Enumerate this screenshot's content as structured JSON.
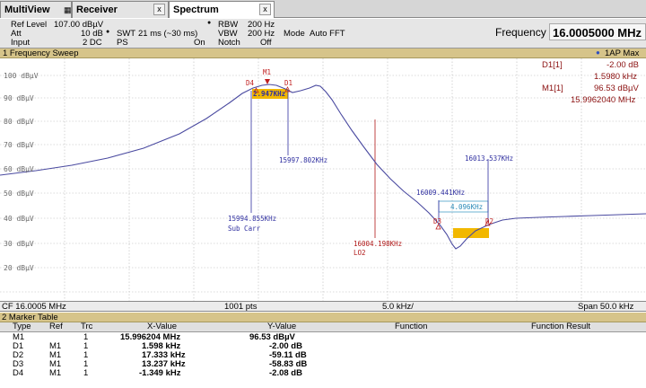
{
  "tabs": {
    "multiview": "MultiView",
    "receiver": "Receiver",
    "spectrum": "Spectrum",
    "close_glyph": "x",
    "grid_icon": "grid-icon"
  },
  "settings": {
    "ref_level_label": "Ref Level",
    "ref_level_value": "107.00 dBµV",
    "att_label": "Att",
    "att_value": "10 dB",
    "input_label": "Input",
    "input_value": "2 DC",
    "swt_label": "SWT",
    "swt_value": "21 ms (~30 ms)",
    "ps_label": "PS",
    "ps_value": "On",
    "rbw_label": "RBW",
    "rbw_value": "200 Hz",
    "vbw_label": "VBW",
    "vbw_value": "200 Hz",
    "notch_label": "Notch",
    "notch_value": "Off",
    "mode_label": "Mode",
    "mode_value": "Auto FFT",
    "frequency_label": "Frequency",
    "frequency_value": "16.0005000 MHz"
  },
  "sweep": {
    "title": "1 Frequency Sweep",
    "trace_label": "1AP Max"
  },
  "marker_info": {
    "d1_label": "D1[1]",
    "d1_level": "-2.00 dB",
    "d1_freq": "1.5980 kHz",
    "m1_label": "M1[1]",
    "m1_level": "96.53 dBµV",
    "m1_freq": "15.9962040 MHz"
  },
  "y_ticks": [
    "100 dBµV",
    "90 dBµV",
    "80 dBµV",
    "70 dBµV",
    "60 dBµV",
    "50 dBµV",
    "40 dBµV",
    "30 dBµV",
    "20 dBµV"
  ],
  "annotations": {
    "m1": "M1",
    "d1": "D1",
    "d2": "D2",
    "d3": "D3",
    "d4": "D4",
    "bw1": "2.947KHz",
    "bw2": "4.096KHz",
    "f1": "15997.802KHz",
    "f2": "15994.855KHz",
    "sub_carr": "Sub Carr",
    "f3": "16004.198KHz",
    "lo2": "LO2",
    "f4": "16009.441KHz",
    "f5": "16013.537KHz"
  },
  "footer": {
    "cf": "CF 16.0005 MHz",
    "pts": "1001 pts",
    "div": "5.0 kHz/",
    "span": "Span 50.0 kHz"
  },
  "marker_table": {
    "title": "2 Marker Table",
    "headers": {
      "type": "Type",
      "ref": "Ref",
      "trc": "Trc",
      "x": "X-Value",
      "y": "Y-Value",
      "function": "Function",
      "result": "Function Result"
    },
    "rows": [
      {
        "type": "M1",
        "ref": "",
        "trc": "1",
        "x": "15.996204 MHz",
        "y": "96.53 dBµV"
      },
      {
        "type": "D1",
        "ref": "M1",
        "trc": "1",
        "x": "1.598 kHz",
        "y": "-2.00 dB"
      },
      {
        "type": "D2",
        "ref": "M1",
        "trc": "1",
        "x": "17.333 kHz",
        "y": "-59.11 dB"
      },
      {
        "type": "D3",
        "ref": "M1",
        "trc": "1",
        "x": "13.237 kHz",
        "y": "-58.83 dB"
      },
      {
        "type": "D4",
        "ref": "M1",
        "trc": "1",
        "x": "-1.349 kHz",
        "y": "-2.08 dB"
      }
    ]
  },
  "colors": {
    "trace": "#4a4aa0",
    "marker": "#c02020",
    "annotation_blue": "#3030a0",
    "annotation_red": "#b01818",
    "highlight": "#f2b800",
    "header_gold": "#d6c48a"
  }
}
